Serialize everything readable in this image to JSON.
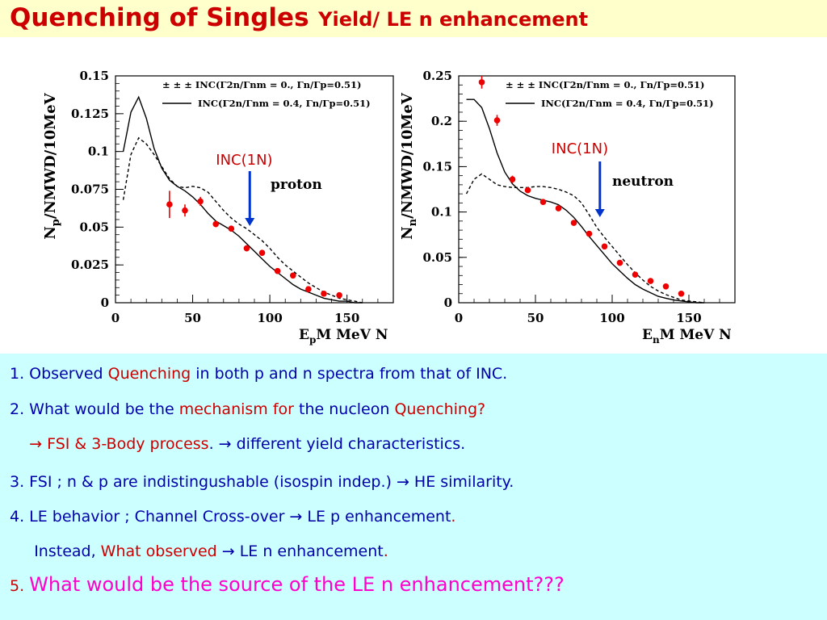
{
  "title": {
    "main": "Quenching of Singles",
    "sub": "Yield/ LE n enhancement"
  },
  "chart_data": [
    {
      "type": "line",
      "name": "proton",
      "ylabel_main": "N",
      "ylabel_sub": "p",
      "ylabel_rest": "/NMWD/10MeV",
      "xlabel_main": "E",
      "xlabel_sub": "p",
      "xlabel_rest": "M MeV N",
      "xlim": [
        0,
        180
      ],
      "ylim": [
        0,
        0.15
      ],
      "xticks": [
        "0",
        "50",
        "100",
        "150"
      ],
      "yticks": [
        "0",
        "0.025",
        "0.05",
        "0.075",
        "0.1",
        "0.125",
        "0.15"
      ],
      "legend": [
        "± ± ± INC(Γ2n/Γnm = 0., Γn/Γp=0.51)",
        "INC(Γ2n/Γnm = 0.4, Γn/Γp=0.51)"
      ],
      "annotation": "INC(1N)",
      "arrow_x": 87,
      "series": [
        {
          "style": "dashed",
          "x": [
            5,
            10,
            15,
            20,
            25,
            30,
            35,
            40,
            45,
            50,
            55,
            60,
            65,
            70,
            75,
            80,
            85,
            90,
            95,
            100,
            105,
            110,
            115,
            120,
            125,
            130,
            135,
            140,
            145,
            150,
            155,
            160
          ],
          "values": [
            0.068,
            0.098,
            0.109,
            0.105,
            0.098,
            0.09,
            0.082,
            0.077,
            0.076,
            0.077,
            0.076,
            0.073,
            0.067,
            0.061,
            0.056,
            0.052,
            0.049,
            0.045,
            0.041,
            0.036,
            0.03,
            0.025,
            0.021,
            0.017,
            0.013,
            0.01,
            0.007,
            0.005,
            0.003,
            0.002,
            0.001,
            0.0
          ]
        },
        {
          "style": "solid",
          "x": [
            5,
            10,
            15,
            20,
            25,
            30,
            35,
            40,
            45,
            50,
            55,
            60,
            65,
            70,
            75,
            80,
            85,
            90,
            95,
            100,
            105,
            110,
            115,
            120,
            125,
            130,
            135,
            140,
            145,
            150,
            155,
            160
          ],
          "values": [
            0.1,
            0.126,
            0.136,
            0.122,
            0.102,
            0.089,
            0.081,
            0.077,
            0.074,
            0.07,
            0.065,
            0.059,
            0.054,
            0.051,
            0.048,
            0.044,
            0.039,
            0.034,
            0.029,
            0.024,
            0.02,
            0.016,
            0.012,
            0.009,
            0.007,
            0.005,
            0.003,
            0.002,
            0.001,
            0.001,
            0.0,
            0.0
          ]
        },
        {
          "style": "points",
          "x": [
            35,
            45,
            55,
            65,
            75,
            85,
            95,
            105,
            115,
            125,
            135,
            145
          ],
          "values": [
            0.065,
            0.061,
            0.067,
            0.052,
            0.049,
            0.036,
            0.033,
            0.021,
            0.018,
            0.009,
            0.006,
            0.005
          ],
          "err": [
            0.009,
            0.004,
            0.003,
            0.002,
            0.002,
            0.002,
            0.002,
            0.001,
            0.001,
            0.001,
            0.001,
            0.001
          ]
        }
      ]
    },
    {
      "type": "line",
      "name": "neutron",
      "ylabel_main": "N",
      "ylabel_sub": "n",
      "ylabel_rest": "/NMWD/10MeV",
      "xlabel_main": "E",
      "xlabel_sub": "n",
      "xlabel_rest": "M MeV N",
      "xlim": [
        0,
        180
      ],
      "ylim": [
        0,
        0.25
      ],
      "xticks": [
        "0",
        "50",
        "100",
        "150"
      ],
      "yticks": [
        "0",
        "0.05",
        "0.1",
        "0.15",
        "0.2",
        "0.25"
      ],
      "legend": [
        "± ± ± INC(Γ2n/Γnm = 0., Γn/Γp=0.51)",
        "INC(Γ2n/Γnm = 0.4, Γn/Γp=0.51)"
      ],
      "annotation": "INC(1N)",
      "arrow_x": 92,
      "series": [
        {
          "style": "dashed",
          "x": [
            5,
            10,
            15,
            20,
            25,
            30,
            35,
            40,
            45,
            50,
            55,
            60,
            65,
            70,
            75,
            80,
            85,
            90,
            95,
            100,
            105,
            110,
            115,
            120,
            125,
            130,
            135,
            140,
            145,
            150,
            155,
            160
          ],
          "values": [
            0.12,
            0.136,
            0.142,
            0.136,
            0.13,
            0.128,
            0.127,
            0.127,
            0.127,
            0.128,
            0.128,
            0.127,
            0.125,
            0.122,
            0.118,
            0.11,
            0.097,
            0.083,
            0.072,
            0.062,
            0.052,
            0.042,
            0.033,
            0.025,
            0.018,
            0.013,
            0.009,
            0.006,
            0.003,
            0.002,
            0.001,
            0.0
          ]
        },
        {
          "style": "solid",
          "x": [
            5,
            10,
            15,
            20,
            25,
            30,
            35,
            40,
            45,
            50,
            55,
            60,
            65,
            70,
            75,
            80,
            85,
            90,
            95,
            100,
            105,
            110,
            115,
            120,
            125,
            130,
            135,
            140,
            145,
            150,
            155,
            160
          ],
          "values": [
            0.224,
            0.224,
            0.215,
            0.192,
            0.165,
            0.144,
            0.131,
            0.123,
            0.118,
            0.115,
            0.113,
            0.111,
            0.108,
            0.102,
            0.094,
            0.084,
            0.073,
            0.063,
            0.053,
            0.043,
            0.035,
            0.027,
            0.02,
            0.015,
            0.011,
            0.007,
            0.005,
            0.003,
            0.002,
            0.001,
            0.0,
            0.0
          ]
        },
        {
          "style": "points",
          "x": [
            15,
            25,
            35,
            45,
            55,
            65,
            75,
            85,
            95,
            105,
            115,
            125,
            135,
            145
          ],
          "values": [
            0.243,
            0.201,
            0.136,
            0.124,
            0.111,
            0.104,
            0.088,
            0.076,
            0.062,
            0.044,
            0.031,
            0.024,
            0.018,
            0.01
          ],
          "err": [
            0.007,
            0.006,
            0.004,
            0.003,
            0.003,
            0.003,
            0.003,
            0.003,
            0.002,
            0.002,
            0.002,
            0.002,
            0.001,
            0.001
          ]
        }
      ]
    }
  ],
  "notes": [
    [
      {
        "t": "1. Observed ",
        "c": ""
      },
      {
        "t": "Quenching",
        "c": "r"
      },
      {
        "t": " in both p and n spectra from that of INC.",
        "c": ""
      }
    ],
    [
      {
        "t": "2. What would be the ",
        "c": ""
      },
      {
        "t": "mechanism for",
        "c": "r"
      },
      {
        "t": " the nucleon ",
        "c": ""
      },
      {
        "t": "Quenching?",
        "c": "r"
      }
    ],
    [
      {
        "t": "    → ",
        "c": "r"
      },
      {
        "t": "FSI & 3-Body process",
        "c": "r"
      },
      {
        "t": ". → different yield characteristics.",
        "c": ""
      }
    ],
    [
      {
        "t": "3. FSI ; n & p are indistingushable (isospin indep.) → HE similarity.",
        "c": ""
      }
    ],
    [
      {
        "t": "4. LE behavior ; Channel Cross-over → LE p enhancement",
        "c": ""
      },
      {
        "t": ".",
        "c": "r"
      }
    ],
    [
      {
        "t": "     Instead, ",
        "c": ""
      },
      {
        "t": "What observed",
        "c": "r"
      },
      {
        "t": " → LE n enhancement",
        "c": ""
      },
      {
        "t": ".",
        "c": "r"
      }
    ],
    [
      {
        "t": "5. ",
        "c": "r"
      },
      {
        "t": "What would be the source of the LE n enhancement???",
        "c": "m"
      }
    ]
  ],
  "colors": {
    "title": "#cc0000",
    "note_text": "#0000aa",
    "highlight": "#cc0000",
    "magenta": "#ff00cc",
    "arrow": "#0033cc",
    "points": "#ee0000"
  }
}
